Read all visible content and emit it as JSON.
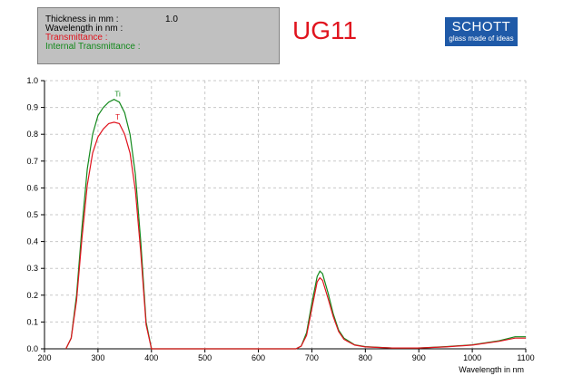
{
  "info": {
    "thickness_label": "Thickness in mm :",
    "thickness_value": "1.0",
    "wavelength_label": "Wavelength in nm :",
    "transmittance_label": "Transmittance :",
    "internal_label": "Internal Transmittance :"
  },
  "title": "UG11",
  "logo": {
    "main": "SCHOTT",
    "sub": "glass made of ideas"
  },
  "colors": {
    "transmittance": "#e0141e",
    "internal": "#13891c",
    "grid": "#c8c8c8",
    "axis": "#000000"
  },
  "chart_data": {
    "type": "line",
    "xlabel": "Wavelength in nm",
    "ylabel": "",
    "xlim": [
      200,
      1100
    ],
    "ylim": [
      0,
      1.0
    ],
    "x_ticks": [
      200,
      300,
      400,
      500,
      600,
      700,
      800,
      900,
      1000,
      1100
    ],
    "y_ticks": [
      "0.0",
      "0.1",
      "0.2",
      "0.3",
      "0.4",
      "0.5",
      "0.6",
      "0.7",
      "0.8",
      "0.9",
      "1.0"
    ],
    "grid": true,
    "series": [
      {
        "name": "Ti",
        "color": "#13891c",
        "x": [
          240,
          250,
          260,
          270,
          280,
          290,
          300,
          310,
          320,
          330,
          340,
          350,
          360,
          370,
          380,
          390,
          400,
          650,
          660,
          670,
          680,
          690,
          700,
          710,
          715,
          720,
          730,
          740,
          750,
          760,
          780,
          800,
          850,
          900,
          950,
          1000,
          1050,
          1080,
          1100
        ],
        "y": [
          0.0,
          0.04,
          0.2,
          0.45,
          0.67,
          0.8,
          0.87,
          0.9,
          0.92,
          0.93,
          0.92,
          0.88,
          0.8,
          0.65,
          0.4,
          0.1,
          0.0,
          0.0,
          0.0,
          0.0,
          0.01,
          0.06,
          0.17,
          0.27,
          0.29,
          0.28,
          0.21,
          0.13,
          0.07,
          0.04,
          0.015,
          0.008,
          0.003,
          0.003,
          0.008,
          0.015,
          0.03,
          0.045,
          0.045
        ]
      },
      {
        "name": "T",
        "color": "#e0141e",
        "x": [
          240,
          250,
          260,
          270,
          280,
          290,
          300,
          310,
          320,
          330,
          340,
          350,
          360,
          370,
          380,
          390,
          400,
          650,
          660,
          670,
          680,
          690,
          700,
          710,
          715,
          720,
          730,
          740,
          750,
          760,
          780,
          800,
          850,
          900,
          950,
          1000,
          1050,
          1080,
          1100
        ],
        "y": [
          0.0,
          0.04,
          0.18,
          0.41,
          0.61,
          0.73,
          0.79,
          0.82,
          0.84,
          0.845,
          0.84,
          0.8,
          0.73,
          0.59,
          0.36,
          0.09,
          0.0,
          0.0,
          0.0,
          0.0,
          0.01,
          0.05,
          0.15,
          0.25,
          0.265,
          0.255,
          0.19,
          0.12,
          0.065,
          0.035,
          0.014,
          0.007,
          0.003,
          0.003,
          0.007,
          0.014,
          0.028,
          0.04,
          0.04
        ]
      }
    ]
  }
}
